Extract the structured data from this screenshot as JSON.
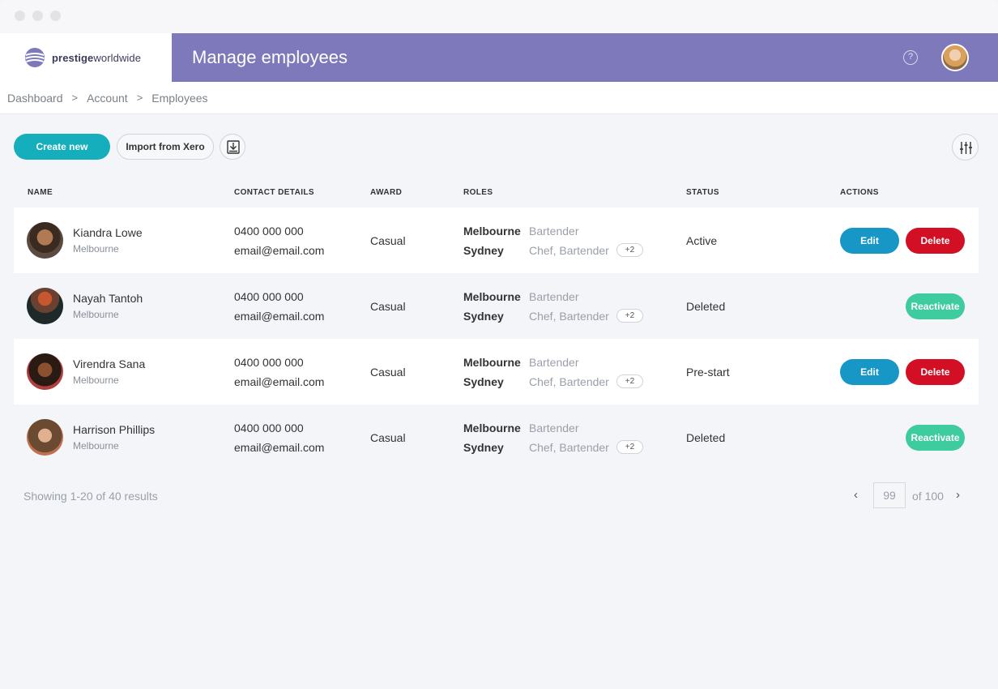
{
  "app": {
    "logo_bold": "prestige",
    "logo_light": "worldwide",
    "page_title": "Manage employees",
    "help_glyph": "?",
    "colors": {
      "header_purple": "#7d79ba",
      "primary_teal": "#14aebc",
      "edit_blue": "#1797c6",
      "delete_red": "#d30f26",
      "reactivate_green": "#3ecb9d"
    }
  },
  "breadcrumb": {
    "items": [
      "Dashboard",
      "Account",
      "Employees"
    ],
    "sep": ">"
  },
  "toolbar": {
    "create_label": "Create new",
    "import_label": "Import from Xero",
    "download_icon": "download-icon",
    "filter_icon": "sliders-icon"
  },
  "table": {
    "headers": {
      "name": "NAME",
      "contact": "CONTACT DETAILS",
      "award": "AWARD",
      "roles": "ROLES",
      "status": "STATUS",
      "actions": "ACTIONS"
    },
    "rows": [
      {
        "name": "Kiandra Lowe",
        "city": "Melbourne",
        "phone": "0400 000 000",
        "email": "email@email.com",
        "award": "Casual",
        "loc1": "Melbourne",
        "role1": "Bartender",
        "loc2": "Sydney",
        "role2": "Chef, Bartender",
        "more": "+2",
        "status": "Active",
        "edit_label": "Edit",
        "delete_label": "Delete"
      },
      {
        "name": "Nayah Tantoh",
        "city": "Melbourne",
        "phone": "0400 000 000",
        "email": "email@email.com",
        "award": "Casual",
        "loc1": "Melbourne",
        "role1": "Bartender",
        "loc2": "Sydney",
        "role2": "Chef, Bartender",
        "more": "+2",
        "status": "Deleted",
        "reactivate_label": "Reactivate"
      },
      {
        "name": "Virendra Sana",
        "city": "Melbourne",
        "phone": "0400 000 000",
        "email": "email@email.com",
        "award": "Casual",
        "loc1": "Melbourne",
        "role1": "Bartender",
        "loc2": "Sydney",
        "role2": "Chef, Bartender",
        "more": "+2",
        "status": "Pre-start",
        "edit_label": "Edit",
        "delete_label": "Delete"
      },
      {
        "name": "Harrison Phillips",
        "city": "Melbourne",
        "phone": "0400 000 000",
        "email": "email@email.com",
        "award": "Casual",
        "loc1": "Melbourne",
        "role1": "Bartender",
        "loc2": "Sydney",
        "role2": "Chef, Bartender",
        "more": "+2",
        "status": "Deleted",
        "reactivate_label": "Reactivate"
      }
    ]
  },
  "footer": {
    "showing": "Showing 1-20 of 40 results",
    "prev": "‹",
    "current_page": "99",
    "of_total": "of 100",
    "next": "›"
  }
}
